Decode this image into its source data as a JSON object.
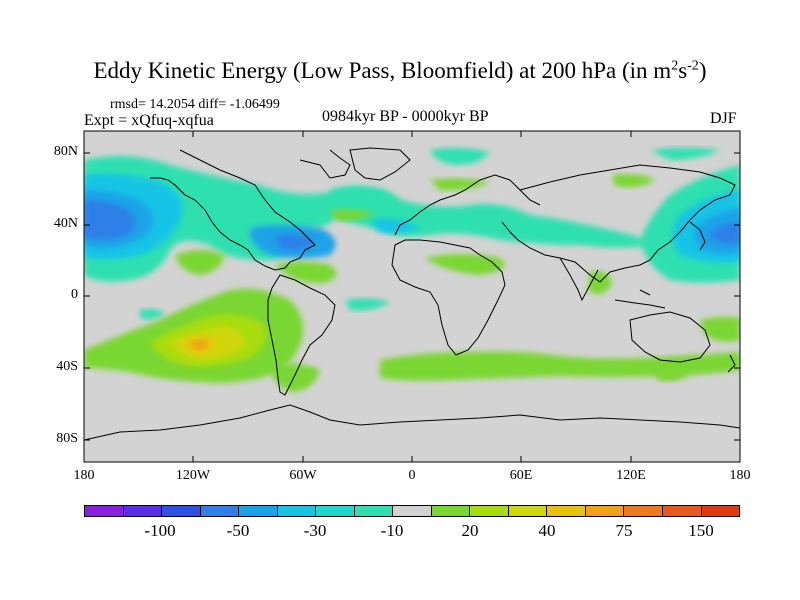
{
  "title": {
    "main": "Eddy Kinetic Energy (Low Pass, Bloomfield) at 200 hPa (in m",
    "sup1": "2",
    "mid": "s",
    "sup2": "-2",
    "end": ")"
  },
  "stats": "rmsd= 14.2054 diff= -1.06499",
  "experiment": "Expt = xQfuq-xqfua",
  "period": "0984kyr BP - 0000kyr BP",
  "season": "DJF",
  "axes": {
    "lat_labels": [
      "80N",
      "40N",
      "0",
      "40S",
      "80S"
    ],
    "lon_labels": [
      "180",
      "120W",
      "60W",
      "0",
      "60E",
      "120E",
      "180"
    ]
  },
  "colorbar": {
    "colors": [
      "#8a1fe0",
      "#5a2ee6",
      "#2f50e0",
      "#2e7fe8",
      "#1aa3e8",
      "#17c4e6",
      "#20d8cc",
      "#2fe0b0",
      "#d2d2d2",
      "#7ad630",
      "#a8dc10",
      "#cfd60a",
      "#e8c20a",
      "#f0a018",
      "#ee7a20",
      "#e85a1c",
      "#e03a10"
    ],
    "labels": [
      "-100",
      "-50",
      "-30",
      "-10",
      "20",
      "40",
      "75",
      "150"
    ]
  },
  "colors": {
    "background": "#d3d3d3",
    "coast": "#000000"
  }
}
